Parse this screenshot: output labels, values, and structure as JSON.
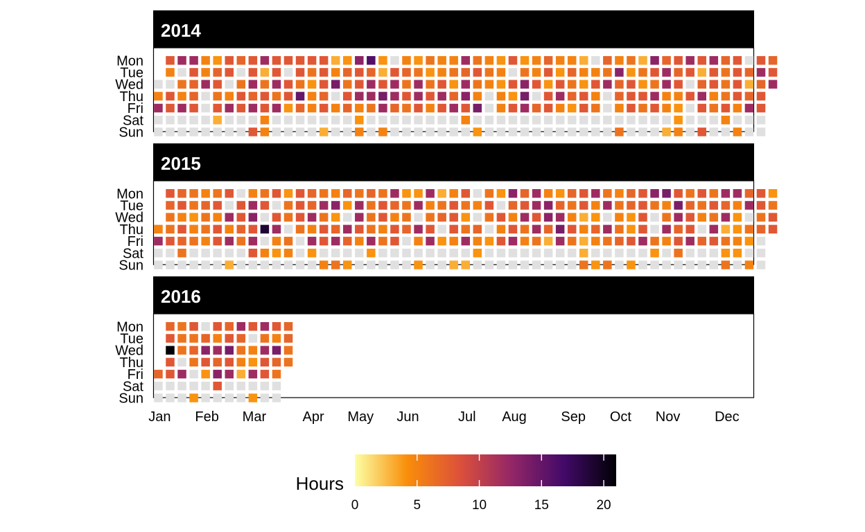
{
  "chart_data": {
    "type": "heatmap",
    "layout": "calendar",
    "metric_label": "Hours",
    "days": [
      "Mon",
      "Tue",
      "Wed",
      "Thu",
      "Fri",
      "Sat",
      "Sun"
    ],
    "months": [
      "Jan",
      "Feb",
      "Mar",
      "Apr",
      "May",
      "Jun",
      "Jul",
      "Aug",
      "Sep",
      "Oct",
      "Nov",
      "Dec"
    ],
    "color_scale": {
      "scheme": "inferno (reversed)",
      "range": [
        0,
        21
      ],
      "ticks": [
        0,
        5,
        10,
        15,
        20
      ],
      "stops": [
        "#fcffa4",
        "#f98e09",
        "#dd513a",
        "#932667",
        "#420a68",
        "#000004"
      ],
      "zero_color": "#e0e0e0"
    },
    "panels": [
      {
        "year": "2014",
        "first_weekday": 2,
        "days_in_year": 365,
        "grid": [
          [
            0,
            8,
            12,
            12,
            5,
            4,
            8,
            7,
            8,
            12,
            8,
            8,
            8,
            8,
            8,
            3,
            4,
            13,
            16,
            4,
            0,
            5,
            4,
            6,
            5,
            5,
            12,
            6,
            5,
            4,
            8,
            4,
            5,
            7,
            5,
            5,
            3,
            0,
            7,
            5,
            6,
            3,
            13,
            7,
            8,
            12,
            8,
            12,
            7,
            8,
            0,
            8,
            7,
            12,
            8,
            6,
            3,
            8
          ],
          [
            0,
            5,
            0,
            8,
            5,
            7,
            8,
            0,
            8,
            3,
            8,
            0,
            8,
            6,
            8,
            5,
            7,
            8,
            7,
            3,
            8,
            7,
            6,
            4,
            5,
            6,
            7,
            8,
            6,
            5,
            0,
            6,
            5,
            8,
            4,
            7,
            5,
            5,
            6,
            13,
            4,
            6,
            8,
            12,
            7,
            8,
            3,
            8,
            6,
            8,
            7,
            12,
            8,
            5,
            8,
            6,
            8,
            0
          ],
          [
            0,
            0,
            6,
            7,
            12,
            8,
            0,
            6,
            12,
            6,
            12,
            8,
            6,
            4,
            8,
            14,
            6,
            8,
            12,
            8,
            12,
            6,
            12,
            6,
            8,
            4,
            12,
            6,
            5,
            4,
            8,
            13,
            8,
            4,
            8,
            6,
            4,
            8,
            12,
            7,
            8,
            4,
            6,
            12,
            8,
            0,
            7,
            8,
            6,
            8,
            3,
            7,
            12,
            8,
            12,
            8,
            6,
            0
          ],
          [
            5,
            8,
            5,
            7,
            0,
            6,
            5,
            8,
            7,
            8,
            6,
            8,
            15,
            5,
            7,
            0,
            8,
            12,
            12,
            14,
            12,
            8,
            12,
            8,
            12,
            7,
            13,
            5,
            0,
            5,
            4,
            14,
            0,
            8,
            12,
            7,
            8,
            5,
            0,
            7,
            8,
            8,
            12,
            5,
            5,
            8,
            12,
            5,
            6,
            8,
            7,
            8,
            4,
            8,
            5,
            7,
            0
          ],
          [
            12,
            8,
            12,
            8,
            0,
            8,
            12,
            8,
            12,
            8,
            12,
            4,
            7,
            5,
            8,
            5,
            7,
            5,
            6,
            12,
            7,
            6,
            8,
            5,
            8,
            12,
            8,
            14,
            0,
            5,
            8,
            12,
            7,
            8,
            5,
            4,
            8,
            6,
            0,
            5,
            8,
            6,
            8,
            5,
            4,
            0,
            8,
            6,
            8,
            5,
            12,
            8,
            6,
            4,
            0,
            8,
            3
          ],
          [
            0,
            0,
            0,
            0,
            0,
            3,
            0,
            0,
            0,
            5,
            0,
            0,
            0,
            0,
            0,
            0,
            0,
            4,
            0,
            0,
            0,
            0,
            0,
            0,
            0,
            0,
            5,
            0,
            0,
            0,
            0,
            0,
            0,
            0,
            0,
            0,
            0,
            0,
            0,
            0,
            0,
            0,
            0,
            0,
            4,
            0,
            0,
            0,
            5,
            0,
            0,
            0,
            5,
            4,
            0,
            5,
            0,
            0
          ],
          [
            0,
            0,
            0,
            0,
            0,
            0,
            0,
            0,
            8,
            5,
            0,
            0,
            0,
            0,
            3,
            0,
            0,
            5,
            0,
            5,
            0,
            0,
            0,
            0,
            0,
            0,
            0,
            4,
            0,
            0,
            0,
            0,
            0,
            0,
            0,
            0,
            0,
            0,
            0,
            6,
            0,
            0,
            0,
            3,
            5,
            0,
            8,
            0,
            0,
            5,
            0,
            0,
            0,
            0,
            0,
            3,
            6,
            5,
            4,
            0,
            3,
            0
          ]
        ]
      },
      {
        "year": "2015",
        "first_weekday": 3,
        "days_in_year": 365,
        "grid": [
          [
            0,
            8,
            7,
            6,
            5,
            6,
            8,
            0,
            5,
            6,
            8,
            4,
            8,
            7,
            6,
            5,
            7,
            6,
            7,
            6,
            12,
            4,
            4,
            12,
            3,
            5,
            8,
            0,
            6,
            4,
            13,
            7,
            12,
            5,
            4,
            7,
            8,
            12,
            6,
            5,
            7,
            8,
            13,
            14,
            8,
            6,
            8,
            6,
            12,
            12,
            7,
            8,
            4,
            6,
            0,
            5,
            8,
            8
          ],
          [
            0,
            7,
            8,
            6,
            7,
            8,
            0,
            8,
            12,
            8,
            0,
            6,
            8,
            7,
            12,
            13,
            4,
            12,
            6,
            8,
            7,
            6,
            12,
            5,
            6,
            8,
            6,
            5,
            8,
            0,
            7,
            8,
            12,
            13,
            7,
            6,
            8,
            5,
            12,
            6,
            7,
            8,
            6,
            5,
            14,
            7,
            6,
            8,
            7,
            5,
            12,
            8,
            6,
            5,
            8,
            6,
            12,
            13
          ],
          [
            0,
            6,
            5,
            4,
            6,
            5,
            12,
            8,
            13,
            0,
            8,
            6,
            8,
            12,
            6,
            4,
            0,
            12,
            6,
            8,
            5,
            6,
            0,
            6,
            7,
            8,
            4,
            0,
            6,
            8,
            5,
            12,
            8,
            13,
            12,
            5,
            3,
            4,
            0,
            5,
            4,
            8,
            0,
            6,
            12,
            8,
            5,
            6,
            12,
            4,
            0,
            6,
            8,
            13,
            14,
            12,
            8,
            0
          ],
          [
            5,
            6,
            8,
            5,
            6,
            8,
            5,
            7,
            8,
            19,
            12,
            0,
            6,
            5,
            8,
            7,
            12,
            8,
            6,
            5,
            8,
            7,
            12,
            8,
            0,
            8,
            6,
            7,
            0,
            5,
            8,
            6,
            12,
            7,
            14,
            8,
            5,
            7,
            12,
            6,
            4,
            8,
            0,
            12,
            7,
            8,
            0,
            12,
            3,
            4,
            6,
            7,
            8,
            4,
            8,
            0,
            12,
            5
          ],
          [
            12,
            8,
            7,
            6,
            5,
            8,
            12,
            6,
            12,
            0,
            5,
            6,
            0,
            12,
            8,
            12,
            7,
            5,
            12,
            6,
            8,
            0,
            5,
            12,
            4,
            5,
            12,
            5,
            4,
            8,
            12,
            5,
            6,
            3,
            12,
            6,
            3,
            5,
            6,
            7,
            8,
            12,
            6,
            5,
            8,
            12,
            7,
            8,
            6,
            5,
            4,
            0,
            5,
            0,
            8,
            4,
            5,
            0
          ],
          [
            0,
            0,
            6,
            0,
            0,
            0,
            0,
            0,
            8,
            5,
            4,
            5,
            0,
            4,
            0,
            0,
            0,
            0,
            4,
            0,
            0,
            0,
            0,
            0,
            0,
            0,
            0,
            4,
            0,
            0,
            0,
            0,
            0,
            0,
            0,
            0,
            3,
            0,
            0,
            0,
            0,
            0,
            4,
            0,
            6,
            0,
            0,
            0,
            4,
            4,
            0,
            0,
            0,
            0,
            3,
            3,
            0,
            4,
            0
          ],
          [
            0,
            0,
            0,
            0,
            0,
            0,
            3,
            0,
            0,
            0,
            0,
            0,
            0,
            0,
            5,
            6,
            4,
            0,
            0,
            0,
            0,
            0,
            4,
            0,
            0,
            3,
            3,
            0,
            0,
            0,
            0,
            0,
            0,
            0,
            0,
            0,
            6,
            4,
            6,
            0,
            4,
            0,
            0,
            0,
            0,
            0,
            0,
            0,
            6,
            0,
            5,
            0,
            0,
            0,
            5,
            0,
            0
          ]
        ]
      },
      {
        "year": "2016",
        "first_weekday": 4,
        "days_in_year": 77,
        "grid": [
          [
            0,
            7,
            6,
            8,
            0,
            8,
            7,
            12,
            8,
            12,
            8,
            7,
            6
          ],
          [
            0,
            8,
            6,
            6,
            7,
            5,
            8,
            7,
            0,
            6,
            5,
            7,
            6
          ],
          [
            0,
            21,
            6,
            7,
            13,
            12,
            14,
            6,
            5,
            12,
            14,
            6,
            8
          ],
          [
            0,
            8,
            0,
            6,
            8,
            7,
            8,
            5,
            4,
            8,
            7,
            6,
            5
          ],
          [
            7,
            8,
            12,
            0,
            4,
            13,
            12,
            3,
            12,
            8,
            6,
            5
          ],
          [
            0,
            0,
            0,
            0,
            0,
            8,
            0,
            0,
            0,
            0,
            0,
            0
          ],
          [
            0,
            0,
            0,
            4,
            0,
            0,
            0,
            0,
            4,
            0,
            0,
            0
          ]
        ]
      }
    ]
  }
}
